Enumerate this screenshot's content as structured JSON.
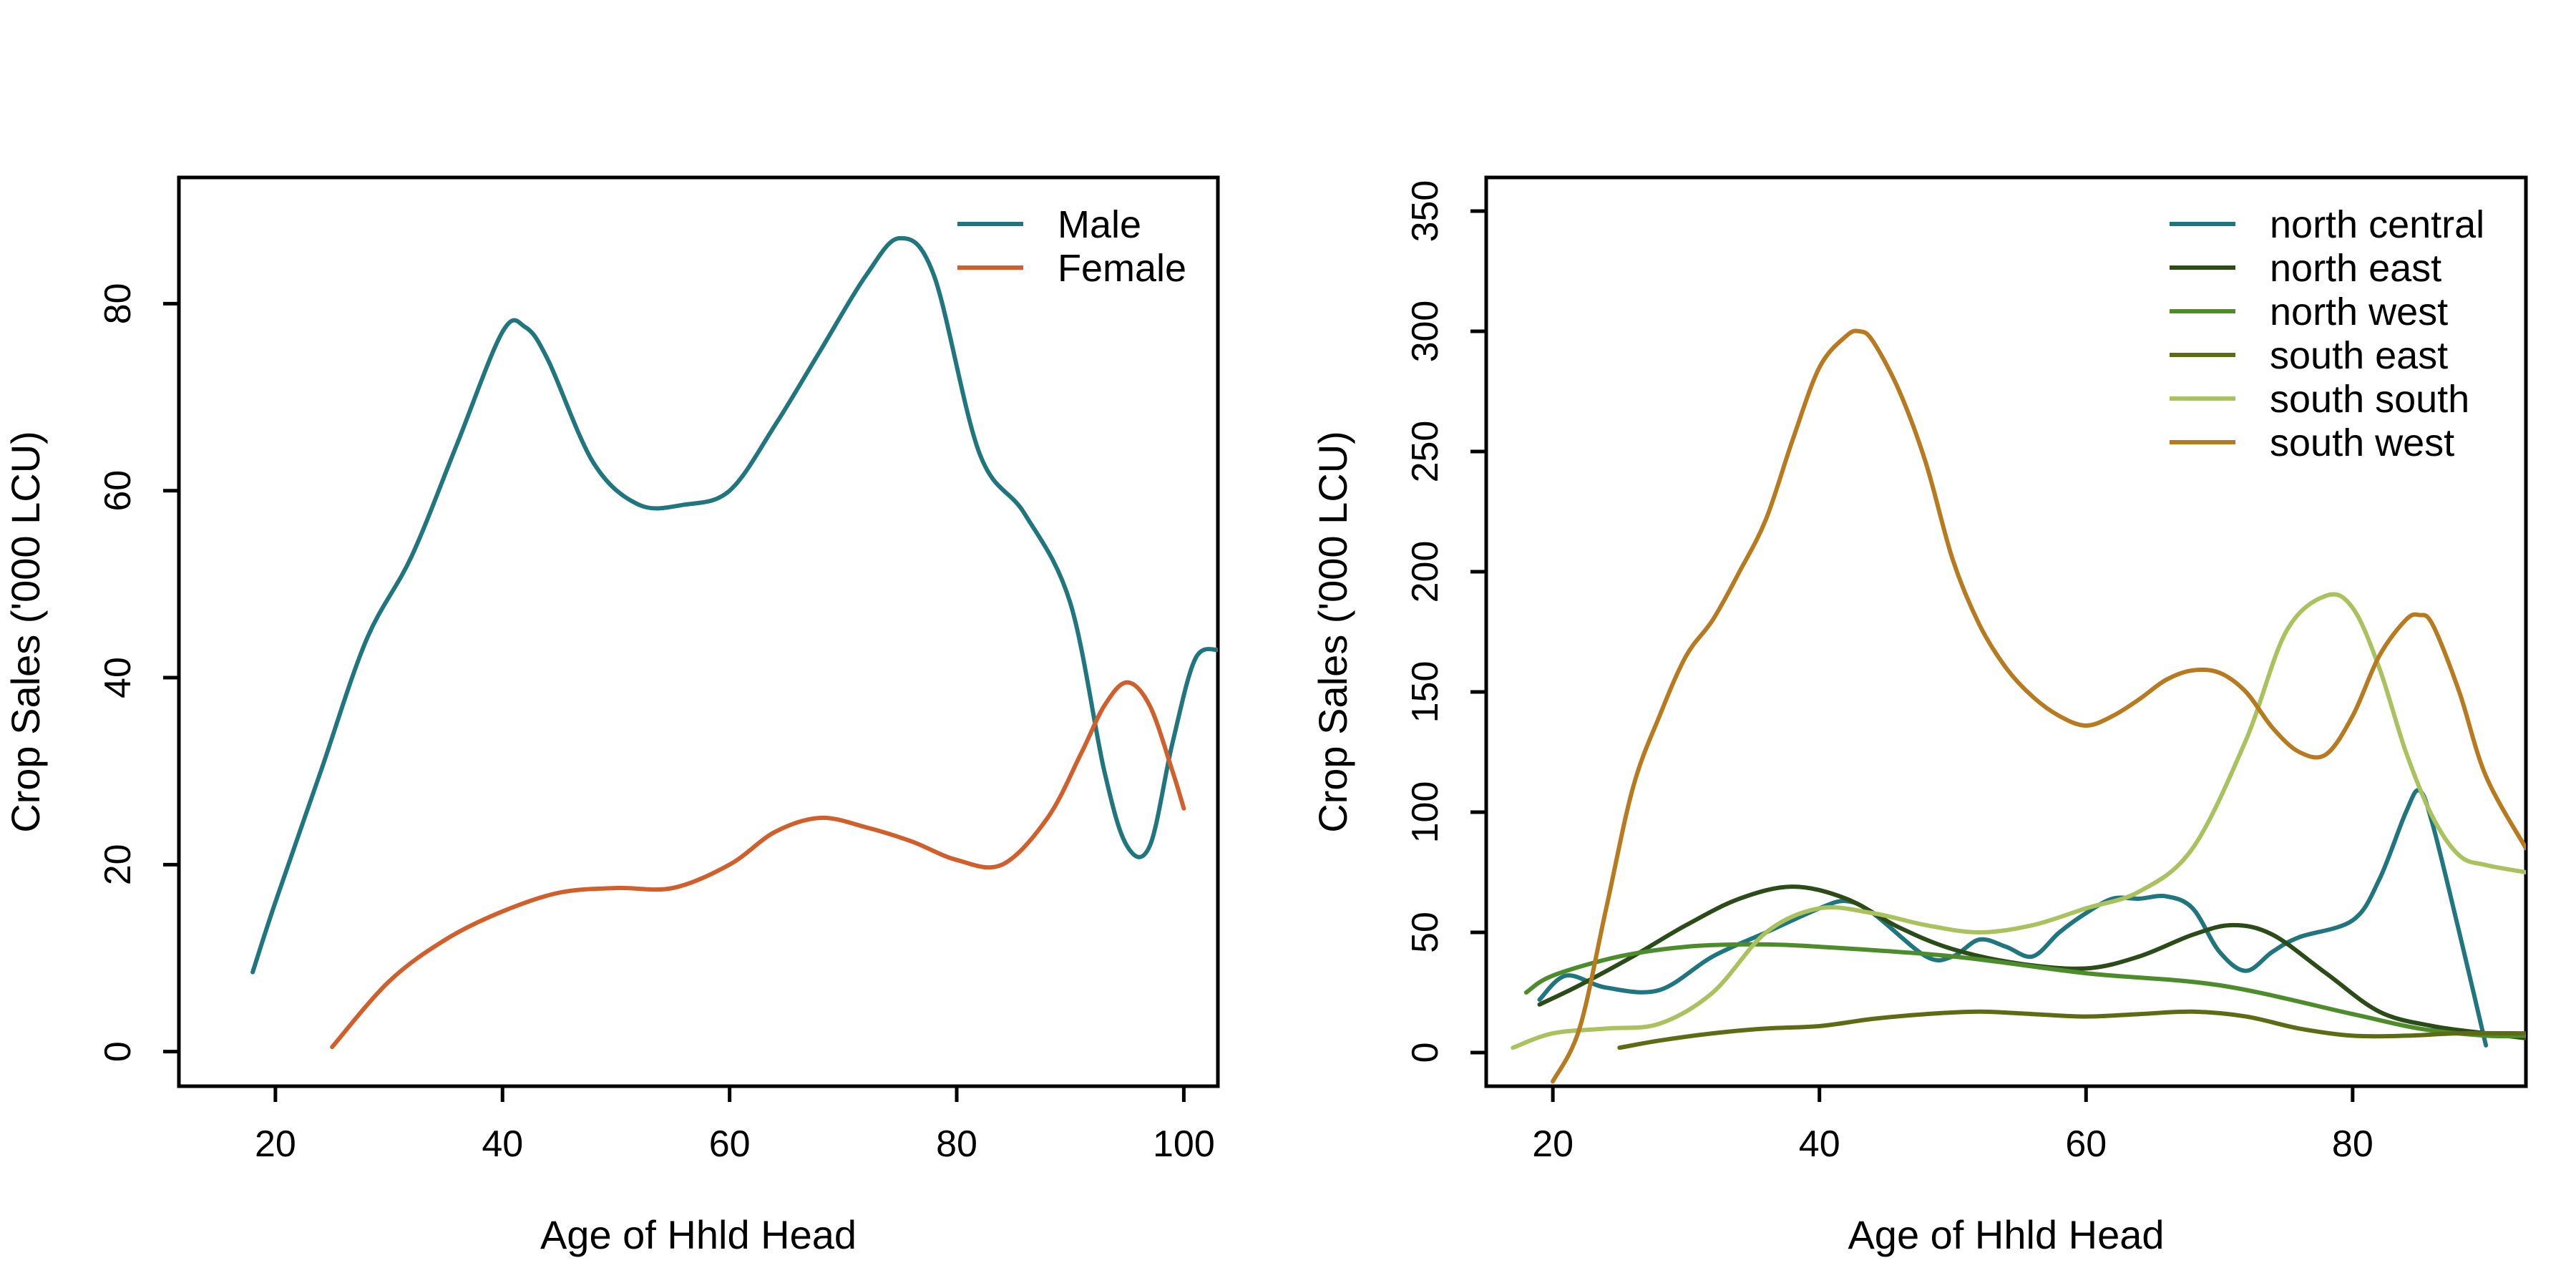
{
  "chart_data": [
    {
      "type": "line",
      "xlabel": "Age of Hhld Head",
      "ylabel": "Crop Sales ('000 LCU)",
      "xlim": [
        11.5,
        103
      ],
      "ylim": [
        -3.7,
        93.5
      ],
      "xticks": [
        20,
        40,
        60,
        80,
        100
      ],
      "yticks": [
        0,
        20,
        40,
        60,
        80
      ],
      "grid": false,
      "legend_position": "top-right",
      "series": [
        {
          "name": "Male",
          "color": "#20767F",
          "x": [
            18,
            20,
            24,
            28,
            32,
            36,
            40,
            42,
            44,
            48,
            52,
            56,
            60,
            64,
            68,
            72,
            75,
            78,
            82,
            86,
            90,
            93,
            95,
            97,
            99,
            101,
            103
          ],
          "y": [
            8.5,
            16,
            30,
            44,
            53,
            65,
            77,
            77.5,
            74,
            63,
            58.5,
            58.5,
            60,
            67,
            75,
            83,
            87,
            83,
            64,
            57.5,
            48,
            30,
            22,
            22,
            33,
            42,
            43
          ]
        },
        {
          "name": "Female",
          "color": "#D15F2C",
          "x": [
            25,
            30,
            35,
            40,
            45,
            50,
            55,
            60,
            64,
            68,
            72,
            76,
            80,
            84,
            88,
            91,
            93,
            95,
            97,
            99,
            100
          ],
          "y": [
            0.5,
            7.5,
            12,
            15,
            17,
            17.5,
            17.5,
            20,
            23.5,
            25,
            24,
            22.5,
            20.5,
            20,
            25,
            32,
            37,
            39.5,
            37,
            30,
            26
          ]
        }
      ]
    },
    {
      "type": "line",
      "xlabel": "Age of Hhld Head",
      "ylabel": "Crop Sales ('000 LCU)",
      "xlim": [
        15,
        93
      ],
      "ylim": [
        -14,
        364
      ],
      "xticks": [
        20,
        40,
        60,
        80
      ],
      "yticks": [
        0,
        50,
        100,
        150,
        200,
        250,
        300,
        350
      ],
      "grid": false,
      "legend_position": "top-right",
      "series": [
        {
          "name": "north central",
          "color": "#20767F",
          "x": [
            19,
            21,
            24,
            28,
            32,
            36,
            40,
            42,
            44,
            48,
            50,
            52,
            54,
            56,
            58,
            60,
            62,
            64,
            66,
            68,
            70,
            72,
            74,
            76,
            80,
            82,
            84,
            85,
            86,
            88,
            90
          ],
          "y": [
            22,
            32,
            27,
            26,
            40,
            50,
            60,
            63,
            58,
            40,
            40,
            47,
            44,
            40,
            50,
            58,
            64,
            64,
            65,
            60,
            42,
            34,
            42,
            48,
            55,
            72,
            100,
            109,
            95,
            50,
            3
          ]
        },
        {
          "name": "north east",
          "color": "#2B4C17",
          "x": [
            19,
            22,
            26,
            30,
            34,
            38,
            42,
            46,
            50,
            55,
            60,
            64,
            68,
            71,
            74,
            78,
            82,
            86,
            90,
            93
          ],
          "y": [
            20,
            28,
            40,
            53,
            64,
            69,
            64,
            52,
            43,
            37,
            35,
            40,
            49,
            53,
            49,
            33,
            17,
            11,
            8,
            6
          ]
        },
        {
          "name": "north west",
          "color": "#4C8C2B",
          "x": [
            18,
            20,
            25,
            30,
            35,
            40,
            50,
            60,
            70,
            80,
            85,
            90,
            93
          ],
          "y": [
            25,
            32,
            40,
            44,
            45,
            44,
            40,
            33,
            28,
            16,
            10,
            7,
            7
          ]
        },
        {
          "name": "south east",
          "color": "#5E6B12",
          "x": [
            25,
            28,
            32,
            36,
            40,
            44,
            48,
            52,
            56,
            60,
            64,
            68,
            72,
            76,
            80,
            84,
            88,
            93
          ],
          "y": [
            2,
            5,
            8,
            10,
            11,
            14,
            16,
            17,
            16,
            15,
            16,
            17,
            15,
            10,
            7,
            7,
            8,
            8
          ]
        },
        {
          "name": "south south",
          "color": "#A9C25D",
          "x": [
            17,
            20,
            24,
            28,
            32,
            36,
            40,
            44,
            48,
            52,
            56,
            60,
            64,
            68,
            72,
            75,
            78,
            80,
            82,
            84,
            86,
            88,
            90,
            93
          ],
          "y": [
            2,
            8,
            10,
            12,
            25,
            50,
            60,
            58,
            53,
            50,
            53,
            60,
            67,
            85,
            130,
            175,
            190,
            185,
            160,
            125,
            98,
            82,
            78,
            75
          ]
        },
        {
          "name": "south west",
          "color": "#B87A1E",
          "x": [
            20,
            22,
            24,
            26,
            28,
            30,
            32,
            34,
            36,
            38,
            40,
            42,
            43,
            44,
            46,
            48,
            50,
            52,
            54,
            56,
            58,
            60,
            62,
            64,
            66,
            68,
            70,
            72,
            74,
            76,
            78,
            80,
            82,
            84,
            85,
            86,
            88,
            90,
            93
          ],
          "y": [
            -12,
            10,
            60,
            110,
            140,
            165,
            180,
            200,
            222,
            255,
            285,
            298,
            300,
            296,
            275,
            245,
            205,
            178,
            160,
            148,
            140,
            136,
            140,
            147,
            155,
            159,
            158,
            150,
            135,
            125,
            124,
            140,
            165,
            180,
            182,
            178,
            150,
            115,
            85
          ]
        }
      ]
    }
  ]
}
